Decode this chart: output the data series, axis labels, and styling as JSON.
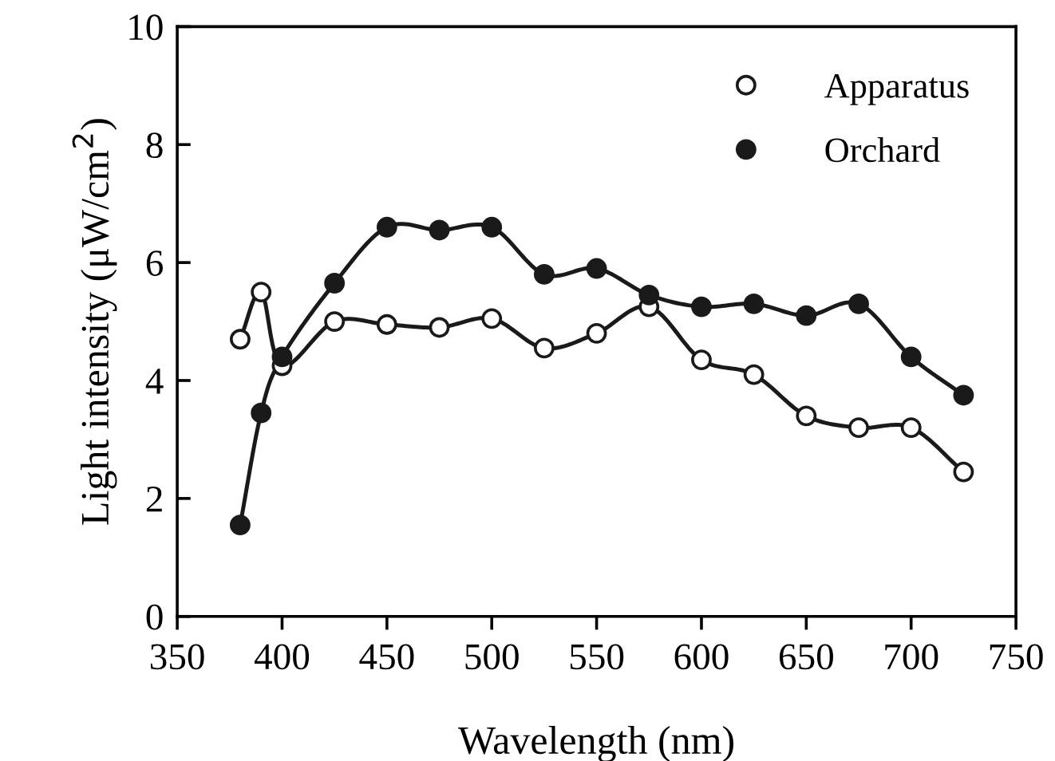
{
  "chart_data": {
    "type": "line",
    "xlabel": "Wavelength (nm)",
    "ylabel": "Light intensity (μW/cm$^{2}$)",
    "xlim": [
      350,
      750
    ],
    "xticks": [
      350,
      400,
      450,
      500,
      550,
      600,
      650,
      700,
      750
    ],
    "ylim": [
      0,
      10
    ],
    "yticks": [
      0,
      2,
      4,
      6,
      8,
      10
    ],
    "x": [
      380,
      390,
      400,
      425,
      450,
      475,
      500,
      525,
      550,
      575,
      600,
      625,
      650,
      675,
      700,
      725
    ],
    "series": [
      {
        "name": "Apparatus",
        "color": "#1a1a1a",
        "values": [
          4.7,
          5.5,
          4.25,
          5.0,
          4.95,
          4.9,
          5.05,
          4.55,
          4.8,
          5.25,
          4.35,
          4.1,
          3.4,
          3.2,
          3.2,
          2.45
        ]
      },
      {
        "name": "Orchard",
        "color": "#1a1a1a",
        "values": [
          1.55,
          3.45,
          4.4,
          5.65,
          6.6,
          6.55,
          6.6,
          5.8,
          5.9,
          5.45,
          5.25,
          5.3,
          5.1,
          5.3,
          4.4,
          3.75
        ]
      }
    ],
    "marker": "circle",
    "line_style": "solid",
    "legend": "top right",
    "grid": false
  }
}
